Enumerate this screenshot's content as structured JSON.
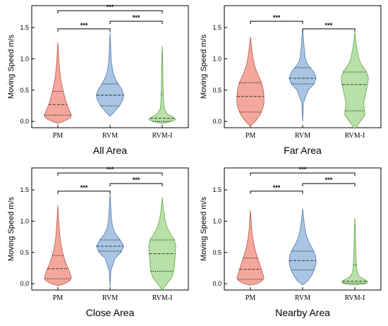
{
  "chart_data": [
    {
      "type": "violin",
      "title": "All Area",
      "ylabel": "Moving Speed m/s",
      "categories": [
        "PM",
        "RVM",
        "RVM-I"
      ],
      "ylim": [
        -0.1,
        1.85
      ],
      "yticks": [
        "0.0",
        "0.5",
        "1.0",
        "1.5"
      ],
      "series": [
        {
          "category": "PM",
          "color": "#f4a79c",
          "min": -0.03,
          "max": 1.27,
          "q1": 0.1,
          "median": 0.27,
          "q3": 0.48,
          "profile": [
            [
              -0.03,
              0.0
            ],
            [
              0.0,
              0.4
            ],
            [
              0.05,
              0.9
            ],
            [
              0.1,
              1.0
            ],
            [
              0.2,
              0.8
            ],
            [
              0.3,
              0.62
            ],
            [
              0.4,
              0.5
            ],
            [
              0.5,
              0.38
            ],
            [
              0.6,
              0.28
            ],
            [
              0.7,
              0.2
            ],
            [
              0.85,
              0.12
            ],
            [
              1.0,
              0.07
            ],
            [
              1.15,
              0.03
            ],
            [
              1.27,
              0.0
            ]
          ]
        },
        {
          "category": "RVM",
          "color": "#a9c5e3",
          "min": 0.08,
          "max": 1.42,
          "q1": 0.25,
          "median": 0.42,
          "q3": 0.6,
          "profile": [
            [
              0.08,
              0.0
            ],
            [
              0.15,
              0.3
            ],
            [
              0.25,
              0.7
            ],
            [
              0.35,
              0.95
            ],
            [
              0.42,
              1.0
            ],
            [
              0.5,
              0.9
            ],
            [
              0.6,
              0.6
            ],
            [
              0.7,
              0.35
            ],
            [
              0.8,
              0.2
            ],
            [
              0.95,
              0.1
            ],
            [
              1.1,
              0.06
            ],
            [
              1.3,
              0.03
            ],
            [
              1.42,
              0.0
            ]
          ]
        },
        {
          "category": "RVM-I",
          "color": "#b8e0a8",
          "min": -0.03,
          "max": 1.2,
          "q1": 0.0,
          "median": 0.05,
          "q3": 0.43,
          "profile": [
            [
              -0.03,
              0.0
            ],
            [
              0.0,
              0.7
            ],
            [
              0.03,
              1.0
            ],
            [
              0.07,
              0.8
            ],
            [
              0.12,
              0.35
            ],
            [
              0.2,
              0.15
            ],
            [
              0.3,
              0.1
            ],
            [
              0.5,
              0.07
            ],
            [
              0.7,
              0.05
            ],
            [
              0.9,
              0.04
            ],
            [
              1.05,
              0.03
            ],
            [
              1.2,
              0.0
            ]
          ]
        }
      ],
      "significance": [
        {
          "pair": [
            "PM",
            "RVM"
          ],
          "y": 1.48,
          "label": "***"
        },
        {
          "pair": [
            "RVM",
            "RVM-I"
          ],
          "y": 1.6,
          "label": "***"
        },
        {
          "pair": [
            "PM",
            "RVM-I"
          ],
          "y": 1.77,
          "label": "***"
        }
      ]
    },
    {
      "type": "violin",
      "title": "Far Area",
      "ylabel": "Moving Speed m/s",
      "categories": [
        "PM",
        "RVM",
        "RVM-I"
      ],
      "ylim": [
        -0.1,
        1.85
      ],
      "yticks": [
        "0.0",
        "0.5",
        "1.0",
        "1.5"
      ],
      "series": [
        {
          "category": "PM",
          "color": "#f4a79c",
          "min": -0.08,
          "max": 1.35,
          "q1": 0.15,
          "median": 0.4,
          "q3": 0.62,
          "profile": [
            [
              -0.08,
              0.0
            ],
            [
              0.0,
              0.35
            ],
            [
              0.1,
              0.7
            ],
            [
              0.2,
              0.9
            ],
            [
              0.3,
              1.0
            ],
            [
              0.4,
              1.0
            ],
            [
              0.5,
              0.95
            ],
            [
              0.6,
              0.85
            ],
            [
              0.7,
              0.65
            ],
            [
              0.8,
              0.45
            ],
            [
              0.9,
              0.3
            ],
            [
              1.0,
              0.2
            ],
            [
              1.15,
              0.1
            ],
            [
              1.35,
              0.0
            ]
          ]
        },
        {
          "category": "RVM",
          "color": "#a9c5e3",
          "min": 0.0,
          "max": 1.47,
          "q1": 0.6,
          "median": 0.69,
          "q3": 0.86,
          "profile": [
            [
              0.0,
              0.0
            ],
            [
              0.3,
              0.06
            ],
            [
              0.5,
              0.4
            ],
            [
              0.6,
              0.85
            ],
            [
              0.7,
              1.0
            ],
            [
              0.8,
              0.8
            ],
            [
              0.9,
              0.4
            ],
            [
              1.0,
              0.2
            ],
            [
              1.2,
              0.1
            ],
            [
              1.35,
              0.05
            ],
            [
              1.47,
              0.0
            ]
          ]
        },
        {
          "category": "RVM-I",
          "color": "#b8e0a8",
          "min": -0.12,
          "max": 1.43,
          "q1": 0.17,
          "median": 0.59,
          "q3": 0.79,
          "profile": [
            [
              -0.12,
              0.0
            ],
            [
              0.0,
              0.4
            ],
            [
              0.1,
              0.75
            ],
            [
              0.2,
              0.7
            ],
            [
              0.3,
              0.65
            ],
            [
              0.45,
              0.8
            ],
            [
              0.6,
              0.95
            ],
            [
              0.7,
              1.0
            ],
            [
              0.8,
              0.85
            ],
            [
              0.9,
              0.5
            ],
            [
              1.0,
              0.3
            ],
            [
              1.2,
              0.12
            ],
            [
              1.43,
              0.0
            ]
          ]
        }
      ],
      "significance": [
        {
          "pair": [
            "PM",
            "RVM"
          ],
          "y": 1.6,
          "label": "***"
        },
        {
          "pair": [
            "RVM",
            "RVM-I"
          ],
          "y": 1.48,
          "label": "***"
        }
      ]
    },
    {
      "type": "violin",
      "title": "Close Area",
      "ylabel": "Moving Speed m/s",
      "categories": [
        "PM",
        "RVM",
        "RVM-I"
      ],
      "ylim": [
        -0.1,
        1.85
      ],
      "yticks": [
        "0.0",
        "0.5",
        "1.0",
        "1.5"
      ],
      "series": [
        {
          "category": "PM",
          "color": "#f4a79c",
          "min": -0.03,
          "max": 1.25,
          "q1": 0.08,
          "median": 0.24,
          "q3": 0.45,
          "profile": [
            [
              -0.03,
              0.0
            ],
            [
              0.0,
              0.5
            ],
            [
              0.05,
              0.9
            ],
            [
              0.1,
              1.0
            ],
            [
              0.2,
              0.85
            ],
            [
              0.3,
              0.65
            ],
            [
              0.4,
              0.48
            ],
            [
              0.5,
              0.35
            ],
            [
              0.6,
              0.25
            ],
            [
              0.75,
              0.15
            ],
            [
              0.9,
              0.1
            ],
            [
              1.05,
              0.05
            ],
            [
              1.25,
              0.0
            ]
          ]
        },
        {
          "category": "RVM",
          "color": "#a9c5e3",
          "min": -0.05,
          "max": 1.45,
          "q1": 0.52,
          "median": 0.6,
          "q3": 0.7,
          "profile": [
            [
              -0.05,
              0.0
            ],
            [
              0.2,
              0.06
            ],
            [
              0.4,
              0.35
            ],
            [
              0.5,
              0.8
            ],
            [
              0.6,
              1.0
            ],
            [
              0.7,
              0.75
            ],
            [
              0.8,
              0.4
            ],
            [
              0.9,
              0.2
            ],
            [
              1.05,
              0.1
            ],
            [
              1.25,
              0.05
            ],
            [
              1.45,
              0.0
            ]
          ]
        },
        {
          "category": "RVM-I",
          "color": "#b8e0a8",
          "min": -0.1,
          "max": 1.38,
          "q1": 0.2,
          "median": 0.48,
          "q3": 0.7,
          "profile": [
            [
              -0.1,
              0.0
            ],
            [
              0.0,
              0.35
            ],
            [
              0.1,
              0.7
            ],
            [
              0.2,
              0.85
            ],
            [
              0.3,
              0.9
            ],
            [
              0.45,
              0.95
            ],
            [
              0.6,
              1.0
            ],
            [
              0.7,
              0.9
            ],
            [
              0.8,
              0.6
            ],
            [
              0.9,
              0.35
            ],
            [
              1.05,
              0.18
            ],
            [
              1.2,
              0.08
            ],
            [
              1.38,
              0.0
            ]
          ]
        }
      ],
      "significance": [
        {
          "pair": [
            "PM",
            "RVM"
          ],
          "y": 1.48,
          "label": "***"
        },
        {
          "pair": [
            "RVM",
            "RVM-I"
          ],
          "y": 1.6,
          "label": "***"
        },
        {
          "pair": [
            "PM",
            "RVM-I"
          ],
          "y": 1.77,
          "label": "***"
        }
      ]
    },
    {
      "type": "violin",
      "title": "Nearby Area",
      "ylabel": "Moving Speed m/s",
      "categories": [
        "PM",
        "RVM",
        "RVM-I"
      ],
      "ylim": [
        -0.1,
        1.85
      ],
      "yticks": [
        "0.0",
        "0.5",
        "1.0",
        "1.5"
      ],
      "series": [
        {
          "category": "PM",
          "color": "#f4a79c",
          "min": -0.02,
          "max": 1.17,
          "q1": 0.07,
          "median": 0.23,
          "q3": 0.41,
          "profile": [
            [
              -0.02,
              0.0
            ],
            [
              0.0,
              0.5
            ],
            [
              0.05,
              0.9
            ],
            [
              0.1,
              1.0
            ],
            [
              0.2,
              0.85
            ],
            [
              0.3,
              0.7
            ],
            [
              0.4,
              0.55
            ],
            [
              0.5,
              0.4
            ],
            [
              0.6,
              0.28
            ],
            [
              0.75,
              0.16
            ],
            [
              0.9,
              0.08
            ],
            [
              1.05,
              0.04
            ],
            [
              1.17,
              0.0
            ]
          ]
        },
        {
          "category": "RVM",
          "color": "#a9c5e3",
          "min": -0.02,
          "max": 1.2,
          "q1": 0.22,
          "median": 0.37,
          "q3": 0.52,
          "profile": [
            [
              -0.02,
              0.0
            ],
            [
              0.05,
              0.4
            ],
            [
              0.15,
              0.7
            ],
            [
              0.25,
              0.9
            ],
            [
              0.35,
              1.0
            ],
            [
              0.45,
              0.95
            ],
            [
              0.55,
              0.75
            ],
            [
              0.65,
              0.5
            ],
            [
              0.75,
              0.3
            ],
            [
              0.9,
              0.15
            ],
            [
              1.05,
              0.07
            ],
            [
              1.2,
              0.0
            ]
          ]
        },
        {
          "category": "RVM-I",
          "color": "#b8e0a8",
          "min": -0.02,
          "max": 1.05,
          "q1": 0.01,
          "median": 0.04,
          "q3": 0.3,
          "profile": [
            [
              -0.02,
              0.0
            ],
            [
              0.0,
              0.8
            ],
            [
              0.03,
              1.0
            ],
            [
              0.07,
              0.7
            ],
            [
              0.12,
              0.3
            ],
            [
              0.2,
              0.15
            ],
            [
              0.35,
              0.1
            ],
            [
              0.5,
              0.07
            ],
            [
              0.7,
              0.05
            ],
            [
              0.9,
              0.03
            ],
            [
              1.05,
              0.0
            ]
          ]
        }
      ],
      "significance": [
        {
          "pair": [
            "PM",
            "RVM"
          ],
          "y": 1.48,
          "label": "***"
        },
        {
          "pair": [
            "RVM",
            "RVM-I"
          ],
          "y": 1.6,
          "label": "***"
        },
        {
          "pair": [
            "PM",
            "RVM-I"
          ],
          "y": 1.77,
          "label": "***"
        }
      ]
    }
  ]
}
